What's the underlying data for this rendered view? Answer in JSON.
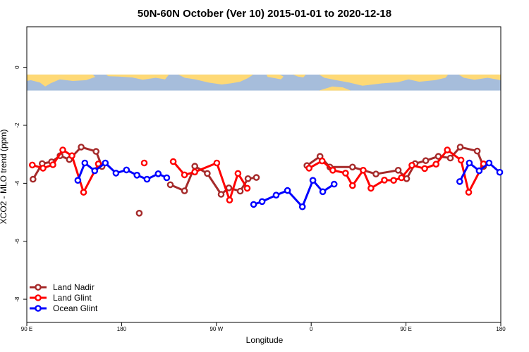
{
  "chart_data": {
    "type": "line",
    "title": "50N-60N October (Ver 10)   2015-01-01 to 2020-12-18",
    "xlabel": "Longitude",
    "ylabel": "XCO2 - MLO trend (ppm)",
    "xlim": [
      90,
      450
    ],
    "ylim": [
      -8.8,
      1.4
    ],
    "x_ticks": [
      {
        "value": 90,
        "label": "90 E"
      },
      {
        "value": 162,
        "label": "180"
      },
      {
        "value": 234,
        "label": "90 W"
      },
      {
        "value": 306,
        "label": "0"
      },
      {
        "value": 378,
        "label": "90 E"
      },
      {
        "value": 450,
        "label": "180"
      }
    ],
    "y_ticks": [
      0,
      -2,
      -4,
      -6,
      -8
    ],
    "map_band": {
      "y_top": -0.25,
      "y_bottom": -0.8,
      "ocean_color": "#a6bddb",
      "land_color": "#fed976"
    },
    "legend": {
      "position": "bottom-left"
    },
    "series": [
      {
        "name": "Land Nadir",
        "color": "#a52a2a",
        "segments": [
          [
            [
              94.7,
              -3.86
            ],
            [
              101.7,
              -3.32
            ],
            [
              108.8,
              -3.26
            ],
            [
              115.3,
              -3.05
            ],
            [
              122.3,
              -3.18
            ],
            [
              131.3,
              -2.75
            ],
            [
              142.6,
              -2.9
            ],
            [
              147.1,
              -3.42
            ]
          ],
          [
            [
              175.4,
              -5.03
            ]
          ],
          [
            [
              199,
              -4.05
            ],
            [
              209.8,
              -4.26
            ],
            [
              217.6,
              -3.41
            ],
            [
              227.1,
              -3.66
            ],
            [
              237.6,
              -4.38
            ],
            [
              243.5,
              -4.16
            ],
            [
              252.1,
              -4.27
            ],
            [
              258,
              -3.84
            ],
            [
              264.4,
              -3.8
            ]
          ],
          [
            [
              302.8,
              -3.39
            ],
            [
              312.7,
              -3.07
            ],
            [
              320.2,
              -3.44
            ],
            [
              337.4,
              -3.44
            ],
            [
              355.2,
              -3.68
            ],
            [
              372.1,
              -3.55
            ],
            [
              378.5,
              -3.84
            ],
            [
              384.9,
              -3.32
            ],
            [
              393,
              -3.22
            ],
            [
              402.6,
              -3.07
            ],
            [
              411.7,
              -3.13
            ],
            [
              419.2,
              -2.75
            ],
            [
              432.1,
              -2.89
            ],
            [
              436.9,
              -3.42
            ]
          ]
        ]
      },
      {
        "name": "Land Glint",
        "color": "#ff0000",
        "segments": [
          [
            [
              94.2,
              -3.37
            ],
            [
              102.3,
              -3.48
            ],
            [
              109.8,
              -3.36
            ],
            [
              117.3,
              -2.85
            ],
            [
              124.3,
              -3.05
            ],
            [
              133.1,
              -4.31
            ],
            [
              144.4,
              -3.33
            ]
          ],
          [
            [
              179.2,
              -3.3
            ]
          ],
          [
            [
              201.2,
              -3.25
            ],
            [
              209.8,
              -3.71
            ],
            [
              217.6,
              -3.61
            ],
            [
              234.3,
              -3.3
            ],
            [
              244,
              -4.58
            ],
            [
              250.4,
              -3.66
            ],
            [
              257.4,
              -4.17
            ]
          ],
          [
            [
              304.4,
              -3.48
            ],
            [
              314.3,
              -3.23
            ],
            [
              322.4,
              -3.55
            ],
            [
              332.1,
              -3.65
            ],
            [
              337.4,
              -4.08
            ],
            [
              345.5,
              -3.55
            ],
            [
              351.4,
              -4.17
            ],
            [
              361.6,
              -3.89
            ],
            [
              368.6,
              -3.9
            ],
            [
              374.5,
              -3.81
            ],
            [
              382.5,
              -3.38
            ],
            [
              392.2,
              -3.49
            ],
            [
              400.8,
              -3.34
            ],
            [
              409.4,
              -2.85
            ],
            [
              419.8,
              -3.2
            ],
            [
              425.6,
              -4.31
            ],
            [
              436.9,
              -3.33
            ]
          ]
        ]
      },
      {
        "name": "Ocean Glint",
        "color": "#0000ff",
        "segments": [
          [
            [
              128.8,
              -3.9
            ],
            [
              134.1,
              -3.3
            ],
            [
              141.6,
              -3.57
            ],
            [
              149.6,
              -3.3
            ],
            [
              157.7,
              -3.65
            ],
            [
              165.7,
              -3.54
            ],
            [
              173.7,
              -3.72
            ],
            [
              181.3,
              -3.86
            ],
            [
              189.8,
              -3.67
            ],
            [
              196.3,
              -3.81
            ]
          ],
          [
            [
              262.3,
              -4.73
            ],
            [
              268.7,
              -4.63
            ],
            [
              279.4,
              -4.41
            ],
            [
              288,
              -4.25
            ],
            [
              299.3,
              -4.81
            ],
            [
              307.3,
              -3.9
            ],
            [
              314.8,
              -4.29
            ],
            [
              323.4,
              -4.03
            ]
          ],
          [
            [
              418.8,
              -3.94
            ],
            [
              426.1,
              -3.3
            ],
            [
              433.6,
              -3.57
            ],
            [
              441.1,
              -3.3
            ],
            [
              449.2,
              -3.62
            ]
          ]
        ]
      }
    ]
  }
}
